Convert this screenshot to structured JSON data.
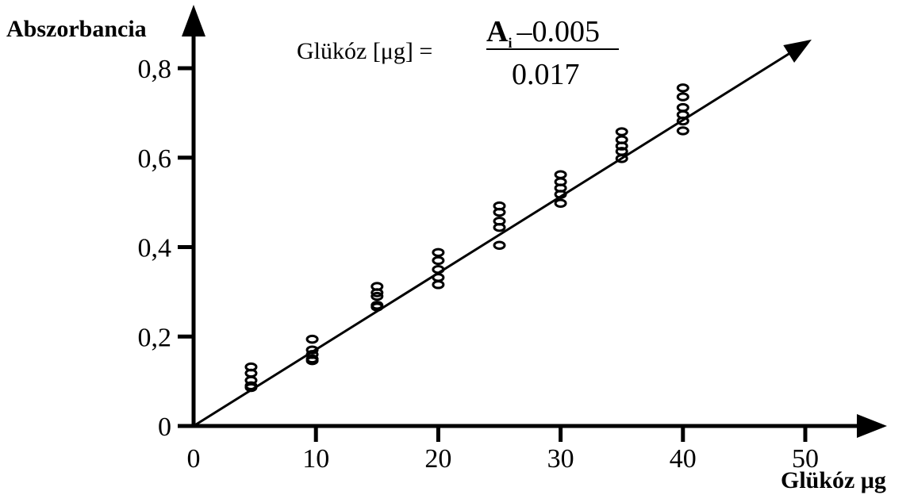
{
  "chart_data": {
    "type": "scatter",
    "title": "",
    "xlabel": "Glükóz μg",
    "ylabel": "Abszorbancia",
    "xlim": [
      0,
      50
    ],
    "ylim": [
      0,
      0.8
    ],
    "x_ticks": [
      "0",
      "10",
      "20",
      "30",
      "40",
      "50"
    ],
    "y_ticks": [
      "0",
      "0,2",
      "0,4",
      "0,6",
      "0,8"
    ],
    "grid": false,
    "points": [
      {
        "x": 4.7,
        "y": 0.132
      },
      {
        "x": 4.7,
        "y": 0.118
      },
      {
        "x": 4.7,
        "y": 0.102
      },
      {
        "x": 4.7,
        "y": 0.09
      },
      {
        "x": 4.7,
        "y": 0.086
      },
      {
        "x": 9.7,
        "y": 0.194
      },
      {
        "x": 9.7,
        "y": 0.17
      },
      {
        "x": 9.7,
        "y": 0.16
      },
      {
        "x": 9.7,
        "y": 0.15
      },
      {
        "x": 9.7,
        "y": 0.146
      },
      {
        "x": 15.0,
        "y": 0.312
      },
      {
        "x": 15.0,
        "y": 0.298
      },
      {
        "x": 15.0,
        "y": 0.29
      },
      {
        "x": 15.0,
        "y": 0.27
      },
      {
        "x": 15.0,
        "y": 0.266
      },
      {
        "x": 20.0,
        "y": 0.388
      },
      {
        "x": 20.0,
        "y": 0.37
      },
      {
        "x": 20.0,
        "y": 0.35
      },
      {
        "x": 20.0,
        "y": 0.332
      },
      {
        "x": 20.0,
        "y": 0.316
      },
      {
        "x": 25.0,
        "y": 0.492
      },
      {
        "x": 25.0,
        "y": 0.478
      },
      {
        "x": 25.0,
        "y": 0.458
      },
      {
        "x": 25.0,
        "y": 0.444
      },
      {
        "x": 25.0,
        "y": 0.404
      },
      {
        "x": 30.0,
        "y": 0.562
      },
      {
        "x": 30.0,
        "y": 0.546
      },
      {
        "x": 30.0,
        "y": 0.532
      },
      {
        "x": 30.0,
        "y": 0.518
      },
      {
        "x": 30.0,
        "y": 0.498
      },
      {
        "x": 35.0,
        "y": 0.658
      },
      {
        "x": 35.0,
        "y": 0.64
      },
      {
        "x": 35.0,
        "y": 0.626
      },
      {
        "x": 35.0,
        "y": 0.614
      },
      {
        "x": 35.0,
        "y": 0.598
      },
      {
        "x": 40.0,
        "y": 0.756
      },
      {
        "x": 40.0,
        "y": 0.736
      },
      {
        "x": 40.0,
        "y": 0.712
      },
      {
        "x": 40.0,
        "y": 0.696
      },
      {
        "x": 40.0,
        "y": 0.682
      },
      {
        "x": 40.0,
        "y": 0.66
      }
    ],
    "fit_line": {
      "slope": 0.017,
      "intercept": 0.005,
      "x_range": [
        0,
        50
      ]
    },
    "formula": {
      "lhs": "Glükóz [μg] =",
      "numerator_symbol": "A",
      "numerator_subscript": "i",
      "numerator_rest": "–0.005",
      "denominator": "0.017"
    },
    "colors": {
      "ink": "#000000",
      "background": "#ffffff"
    }
  }
}
